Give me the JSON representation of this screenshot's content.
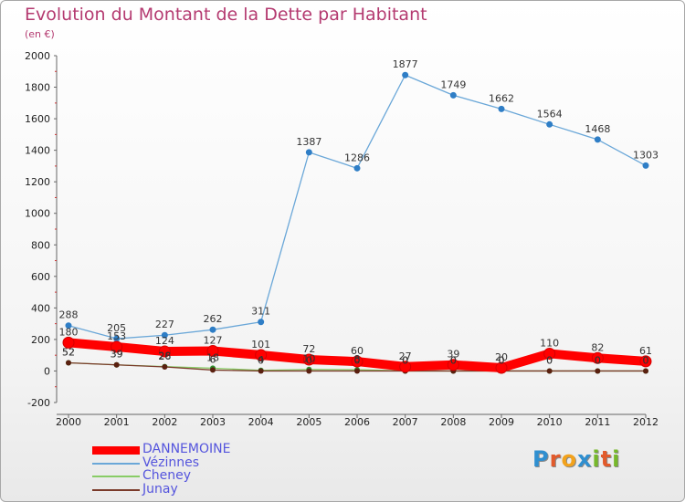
{
  "title": "Evolution du Montant de la Dette par Habitant",
  "subtitle": "(en €)",
  "logo": {
    "letters": [
      "P",
      "r",
      "o",
      "x",
      "i",
      "t",
      "i"
    ],
    "colors": [
      "#2f8fd0",
      "#e25a2b",
      "#f2a21c",
      "#2f8fd0",
      "#76b82a",
      "#e25a2b",
      "#76b82a"
    ]
  },
  "chart_data": {
    "type": "line",
    "x": [
      "2000",
      "2001",
      "2002",
      "2003",
      "2004",
      "2005",
      "2006",
      "2007",
      "2008",
      "2009",
      "2010",
      "2011",
      "2012"
    ],
    "ylim": [
      -200,
      2000
    ],
    "yticks": [
      -200,
      0,
      200,
      400,
      600,
      800,
      1000,
      1200,
      1400,
      1600,
      1800,
      2000
    ],
    "ytick_labels": [
      "-200",
      "0",
      "200",
      "400",
      "600",
      "800",
      "1000",
      "1200",
      "1400",
      "1600",
      "1800",
      "2000"
    ],
    "grid": false,
    "legend_position": "bottom-left",
    "series": [
      {
        "name": "DANNEMOINE",
        "values": [
          180,
          153,
          124,
          127,
          101,
          72,
          60,
          27,
          39,
          20,
          110,
          82,
          61
        ],
        "labels": [
          "180",
          "153",
          "124",
          "127",
          "101",
          "72",
          "60",
          "27",
          "39",
          "20",
          "110",
          "82",
          "61"
        ],
        "color": "#ff0000",
        "width": 10,
        "marker": 6
      },
      {
        "name": "Vézinnes",
        "values": [
          288,
          205,
          227,
          262,
          311,
          1387,
          1286,
          1877,
          1749,
          1662,
          1564,
          1468,
          1303
        ],
        "labels": [
          "288",
          "205",
          "227",
          "262",
          "311",
          "1387",
          "1286",
          "1877",
          "1749",
          "1662",
          "1564",
          "1468",
          "1303"
        ],
        "color": "#6aa7d8",
        "width": 1.3,
        "marker": 3.5,
        "marker_color": "#2f7ec6"
      },
      {
        "name": "Cheney",
        "values": [
          52,
          39,
          28,
          18,
          4,
          10,
          8,
          0,
          0,
          0,
          0,
          0,
          0
        ],
        "labels": [
          "52",
          "39",
          "28",
          "18",
          "4",
          "10",
          "8",
          "0",
          "0",
          "0",
          "0",
          "0",
          "0"
        ],
        "color": "#88cc66",
        "width": 1.3,
        "marker": 3,
        "marker_color": "#2f8f2f"
      },
      {
        "name": "Junay",
        "values": [
          52,
          39,
          26,
          6,
          0,
          0,
          0,
          0,
          0,
          0,
          0,
          0,
          0
        ],
        "labels": [
          "52",
          "39",
          "26",
          "6",
          "0",
          "0",
          "0",
          "0",
          "0",
          "0",
          "0",
          "0",
          "0"
        ],
        "color": "#7a3a2a",
        "width": 1.3,
        "marker": 3,
        "marker_color": "#5a2010"
      }
    ]
  }
}
